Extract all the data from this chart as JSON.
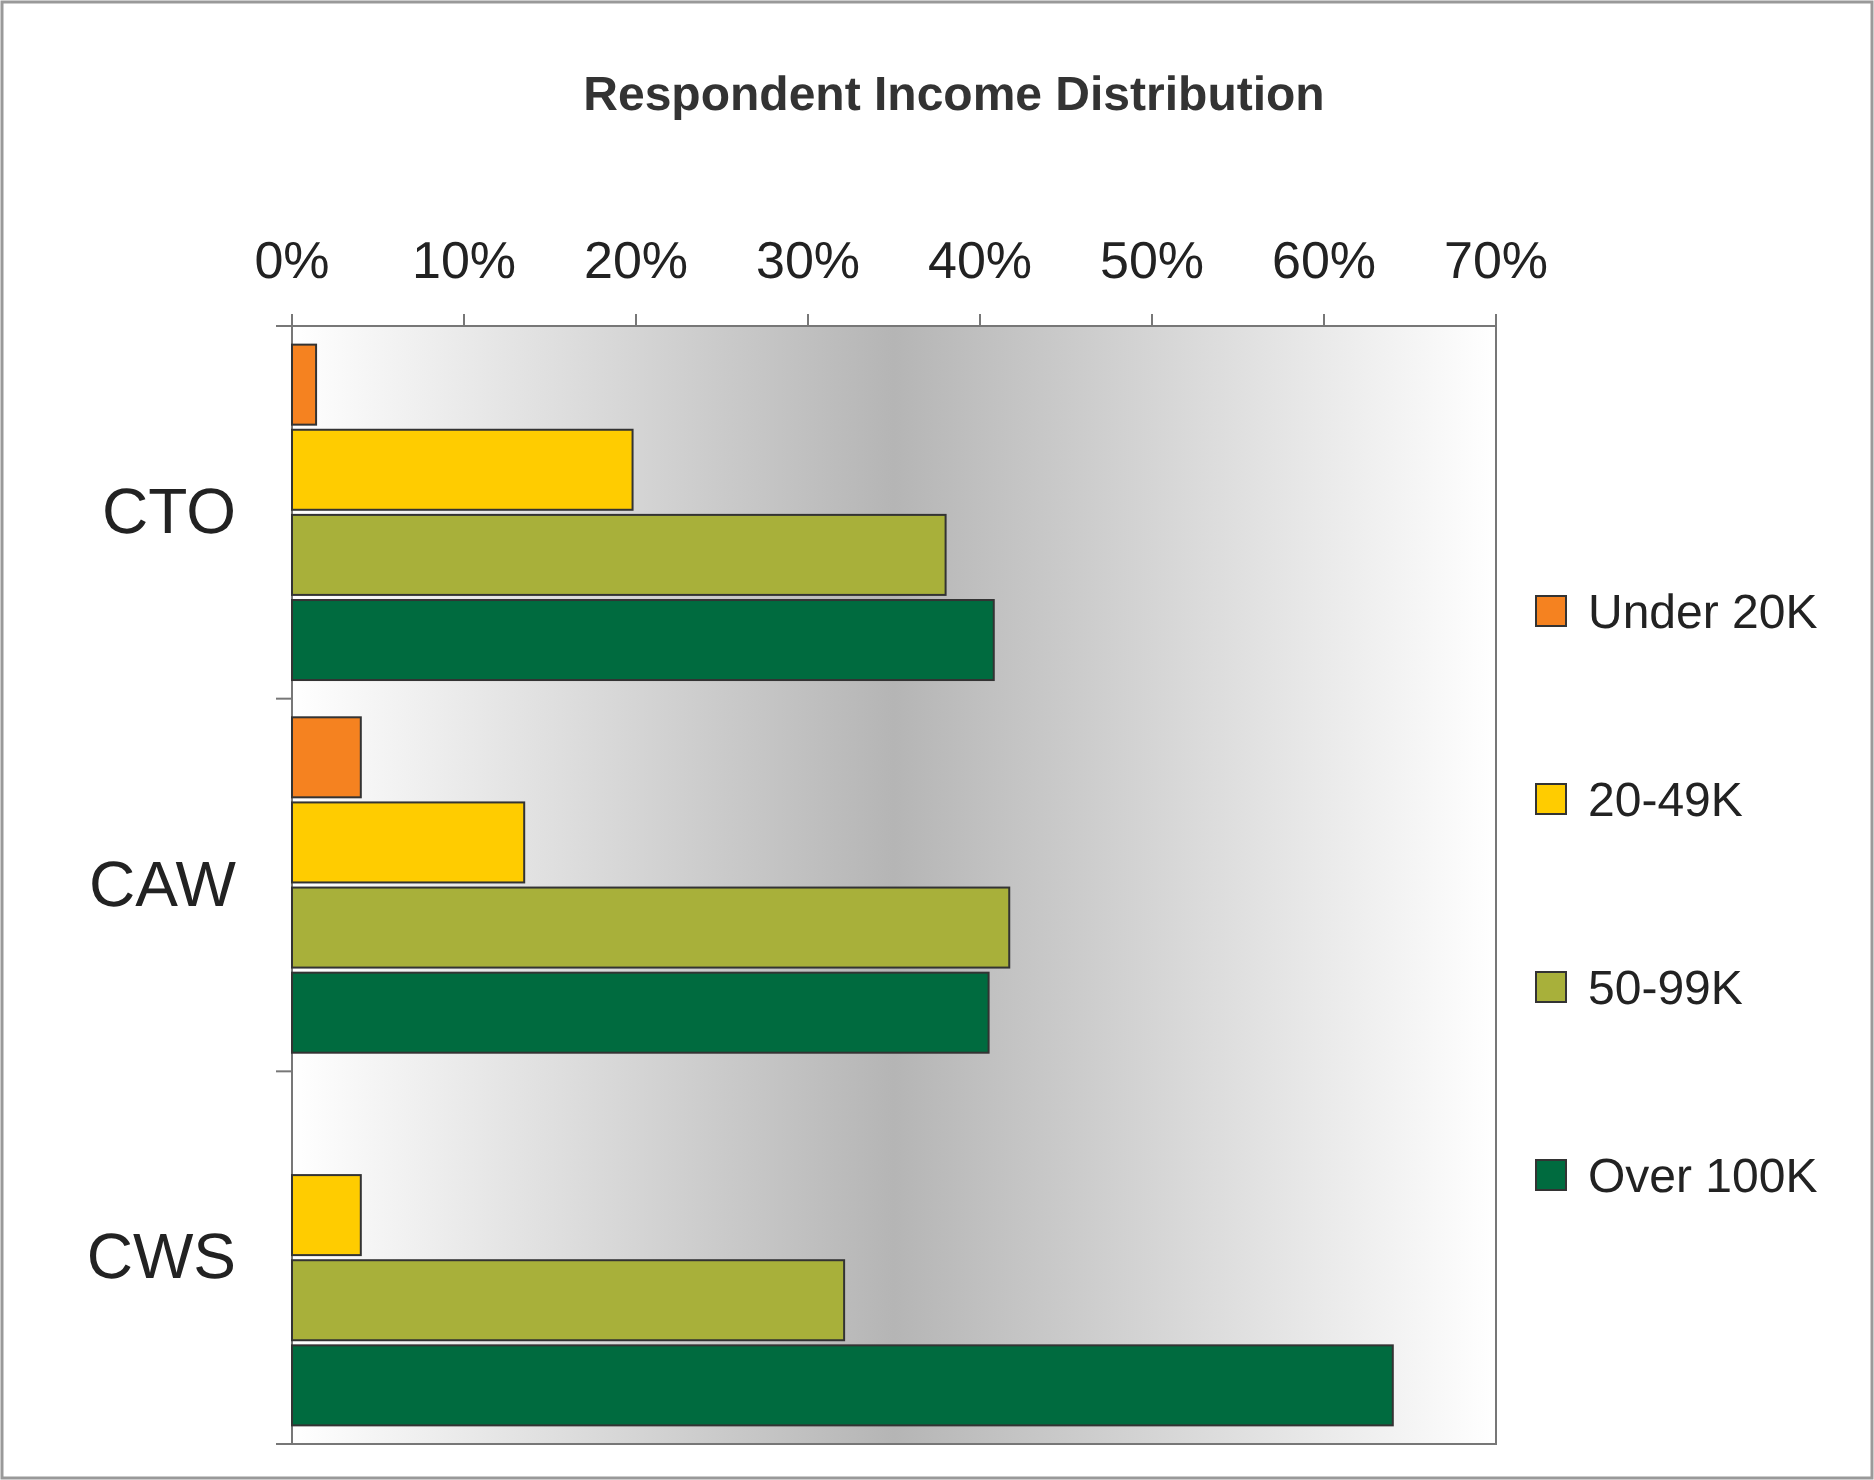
{
  "chart_data": {
    "type": "bar",
    "orientation": "horizontal",
    "title": "Respondent Income Distribution",
    "categories": [
      "CTO",
      "CAW",
      "CWS"
    ],
    "series": [
      {
        "name": "Under 20K",
        "color": "#f58220",
        "values": [
          1.4,
          4.0,
          null
        ]
      },
      {
        "name": "20-49K",
        "color": "#ffcc00",
        "values": [
          19.8,
          13.5,
          4.0
        ]
      },
      {
        "name": "50-99K",
        "color": "#a8b03a",
        "values": [
          38.0,
          41.7,
          32.1
        ]
      },
      {
        "name": "Over 100K",
        "color": "#006b3f",
        "values": [
          40.8,
          40.5,
          64.0
        ]
      }
    ],
    "xlim": [
      0,
      70
    ],
    "xticks": [
      {
        "value": 0,
        "label": "0%"
      },
      {
        "value": 10,
        "label": "10%"
      },
      {
        "value": 20,
        "label": "20%"
      },
      {
        "value": 30,
        "label": "30%"
      },
      {
        "value": 40,
        "label": "40%"
      },
      {
        "value": 50,
        "label": "50%"
      },
      {
        "value": 60,
        "label": "60%"
      },
      {
        "value": 70,
        "label": "70%"
      }
    ],
    "grid": false,
    "legend": "right"
  }
}
